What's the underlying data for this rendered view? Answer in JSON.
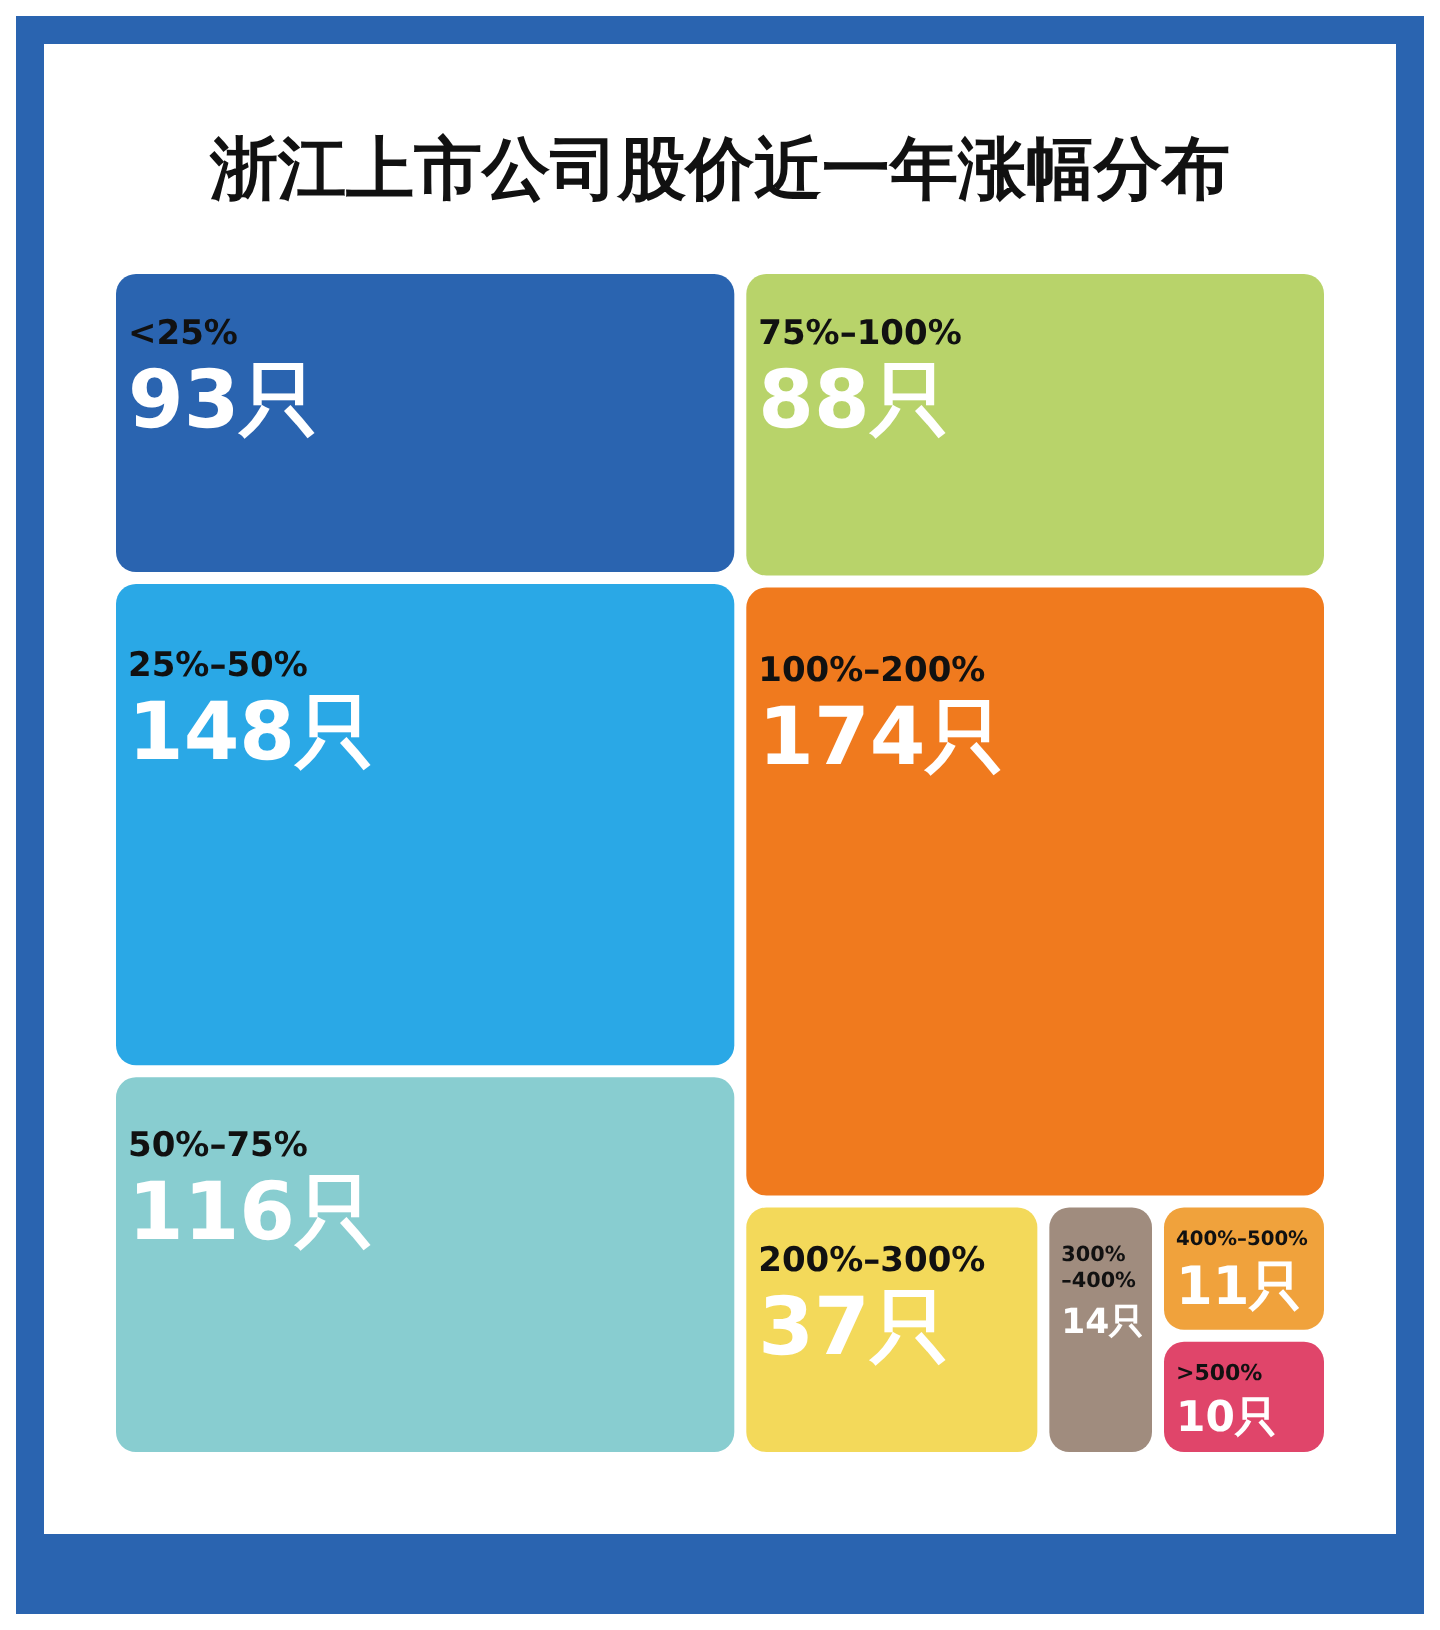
{
  "chart_data": {
    "type": "other",
    "title": "浙江上市公司股价近一年涨幅分布",
    "categories": [
      "<25%",
      "25%–50%",
      "50%–75%",
      "75%–100%",
      "100%–200%",
      "200%–300%",
      "300%–400%",
      "400%–500%",
      ">500%"
    ],
    "values": [
      93,
      148,
      116,
      88,
      174,
      37,
      14,
      11,
      10
    ],
    "colors": [
      "#2a64b0",
      "#2aa8e6",
      "#88cdd0",
      "#b8d36a",
      "#f07a1e",
      "#f3d95a",
      "#a08c7e",
      "#f0a23c",
      "#e0456a"
    ],
    "value_labels": [
      "93只",
      "148只",
      "116只",
      "88只",
      "174只",
      "37只",
      "14只",
      "11只",
      "10只"
    ]
  }
}
